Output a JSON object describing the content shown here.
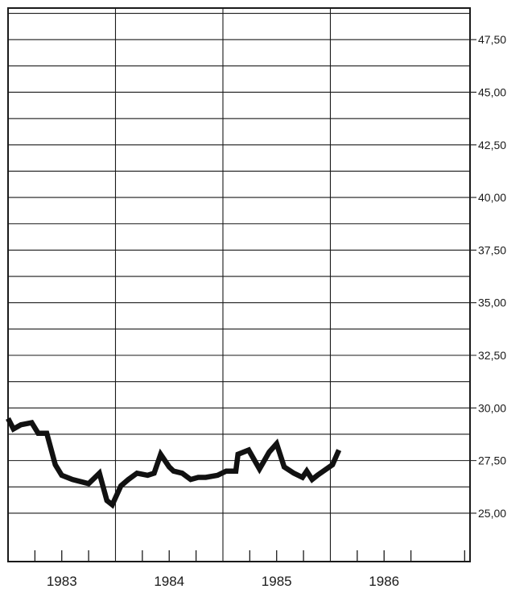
{
  "chart_data": {
    "type": "line",
    "title": "",
    "xlabel": "",
    "ylabel": "",
    "x_axis": {
      "type": "time",
      "range": [
        1982.5,
        1986.8
      ],
      "major_gridlines": [
        1983.5,
        1984.5,
        1985.5
      ],
      "tick_labels": [
        {
          "text": "1983",
          "value": 1983.0
        },
        {
          "text": "1984",
          "value": 1984.0
        },
        {
          "text": "1985",
          "value": 1985.0
        },
        {
          "text": "1986",
          "value": 1986.0
        }
      ]
    },
    "y_axis": {
      "position": "right",
      "ylim": [
        22.7,
        49.0
      ],
      "tick_labels": [
        {
          "text": "25,00",
          "value": 25.0
        },
        {
          "text": "27,50",
          "value": 27.5
        },
        {
          "text": "30,00",
          "value": 30.0
        },
        {
          "text": "32,50",
          "value": 32.5
        },
        {
          "text": "35,00",
          "value": 35.0
        },
        {
          "text": "37,50",
          "value": 37.5
        },
        {
          "text": "40,00",
          "value": 40.0
        },
        {
          "text": "42,50",
          "value": 42.5
        },
        {
          "text": "45,00",
          "value": 45.0
        },
        {
          "text": "47,50",
          "value": 47.5
        }
      ],
      "minor_gridlines": [
        26.25,
        28.75,
        31.25,
        33.75,
        36.25,
        38.75,
        41.25,
        43.75,
        46.25,
        48.75
      ]
    },
    "grid": true,
    "legend": "none",
    "colors": {
      "line": "#111111",
      "grid": "#1a1a1a",
      "background": "#ffffff"
    },
    "series": [
      {
        "x": [
          1982.5,
          1982.55,
          1982.62,
          1982.72,
          1982.78,
          1982.86,
          1982.94,
          1983.0,
          1983.1,
          1983.25,
          1983.35,
          1983.42,
          1983.47,
          1983.55,
          1983.62,
          1983.7,
          1983.8,
          1983.86,
          1983.92,
          1984.0,
          1984.04,
          1984.12,
          1984.2,
          1984.27,
          1984.34,
          1984.45,
          1984.53,
          1984.62,
          1984.64,
          1984.74,
          1984.84,
          1984.93,
          1985.0,
          1985.07,
          1985.16,
          1985.24,
          1985.28,
          1985.33,
          1985.38,
          1985.52,
          1985.58
        ],
        "y": [
          29.5,
          29.0,
          29.2,
          29.3,
          28.8,
          28.8,
          27.3,
          26.8,
          26.6,
          26.4,
          26.9,
          25.6,
          25.4,
          26.3,
          26.6,
          26.9,
          26.8,
          26.9,
          27.8,
          27.2,
          27.0,
          26.9,
          26.6,
          26.7,
          26.7,
          26.8,
          27.0,
          27.0,
          27.8,
          28.0,
          27.1,
          27.9,
          28.3,
          27.2,
          26.9,
          26.7,
          27.0,
          26.6,
          26.8,
          27.3,
          28.0
        ]
      }
    ]
  }
}
